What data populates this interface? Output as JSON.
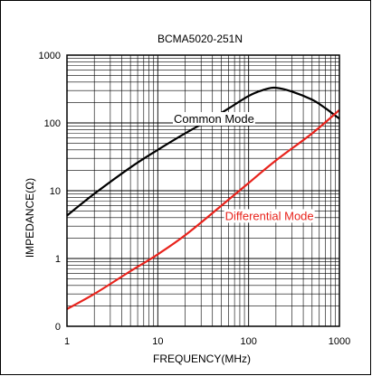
{
  "chart_data": {
    "type": "line",
    "title": "BCMA5020-251N",
    "xlabel": "FREQUENCY(MHz)",
    "ylabel": "IMPEDANCE(Ω)",
    "x_scale": "log",
    "y_scale": "log",
    "xlim": [
      1,
      1000
    ],
    "ylim": [
      0.1,
      1000
    ],
    "grid": true,
    "x_ticks": [
      {
        "value": 1,
        "label": "1"
      },
      {
        "value": 10,
        "label": "10"
      },
      {
        "value": 100,
        "label": "100"
      },
      {
        "value": 1000,
        "label": "1000"
      }
    ],
    "y_ticks": [
      {
        "value": 0.1,
        "label": "0"
      },
      {
        "value": 1,
        "label": "1"
      },
      {
        "value": 10,
        "label": "10"
      },
      {
        "value": 100,
        "label": "100"
      },
      {
        "value": 1000,
        "label": "1000"
      }
    ],
    "series": [
      {
        "name": "Common Mode",
        "color": "#000000",
        "x": [
          1,
          2,
          5,
          10,
          20,
          50,
          100,
          150,
          200,
          300,
          500,
          700,
          1000
        ],
        "y": [
          4.3,
          9,
          22,
          40,
          70,
          140,
          250,
          310,
          330,
          290,
          220,
          165,
          115
        ]
      },
      {
        "name": "Differential Mode",
        "color": "#e8231c",
        "x": [
          1,
          2,
          5,
          10,
          20,
          50,
          100,
          200,
          500,
          1000
        ],
        "y": [
          0.18,
          0.3,
          0.65,
          1.15,
          2.2,
          6,
          13,
          28,
          70,
          155
        ]
      }
    ],
    "annotations": [
      {
        "text": "Common Mode",
        "x": 15,
        "y": 100,
        "color": "#000000"
      },
      {
        "text": "Differential Mode",
        "x": 55,
        "y": 3.7,
        "color": "#e8231c"
      }
    ]
  }
}
